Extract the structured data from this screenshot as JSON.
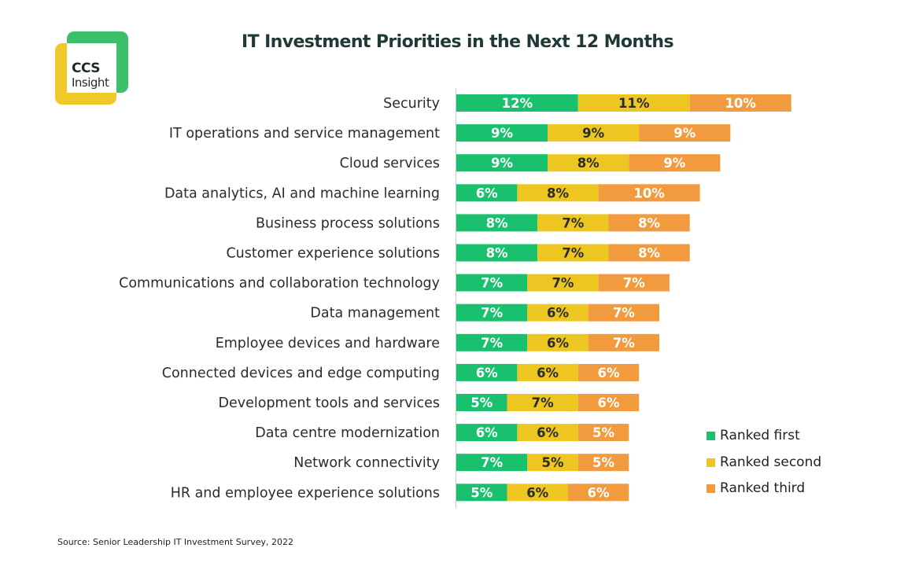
{
  "logo": {
    "line1": "CCS",
    "line2": "Insight"
  },
  "source": "Source: Senior Leadership IT Investment Survey, 2022",
  "colors": {
    "first": "#19c06e",
    "second": "#eec622",
    "third": "#f19a3e",
    "logo_green": "#3cc06a",
    "logo_yellow": "#efc92a"
  },
  "chart_data": {
    "type": "bar",
    "orientation": "horizontal",
    "stacked": true,
    "title": "IT Investment Priorities in the Next 12 Months",
    "categories": [
      "Security",
      "IT operations and service management",
      "Cloud services",
      "Data analytics, AI and machine learning",
      "Business process solutions",
      "Customer experience solutions",
      "Communications and collaboration technology",
      "Data management",
      "Employee devices and hardware",
      "Connected devices and edge computing",
      "Development tools and services",
      "Data centre modernization",
      "Network connectivity",
      "HR and employee experience solutions"
    ],
    "series": [
      {
        "name": "Ranked first",
        "values": [
          12,
          9,
          9,
          6,
          8,
          8,
          7,
          7,
          7,
          6,
          5,
          6,
          7,
          5
        ]
      },
      {
        "name": "Ranked second",
        "values": [
          11,
          9,
          8,
          8,
          7,
          7,
          7,
          6,
          6,
          6,
          7,
          6,
          5,
          6
        ]
      },
      {
        "name": "Ranked third",
        "values": [
          10,
          9,
          9,
          10,
          8,
          8,
          7,
          7,
          7,
          6,
          6,
          5,
          5,
          6
        ]
      }
    ],
    "value_suffix": "%",
    "legend_position": "bottom-right",
    "xlabel": "",
    "ylabel": ""
  }
}
